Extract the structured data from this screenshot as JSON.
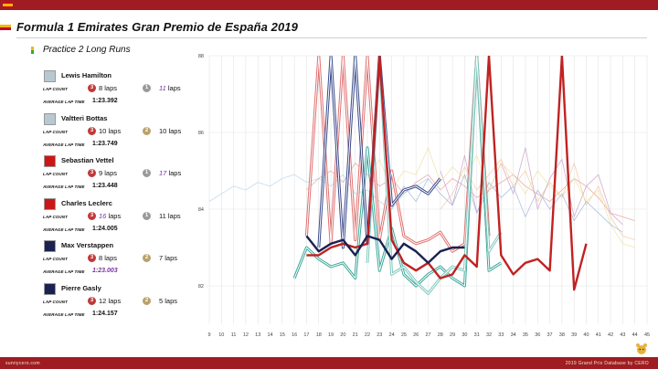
{
  "header": {
    "title": "Formula 1 Emirates Gran Premio de España 2019",
    "subtitle": "Practice 2 Long Runs"
  },
  "labels": {
    "lap_count": "LAP COUNT",
    "avg_lap_time": "AVERAGE LAP TIME"
  },
  "drivers": [
    {
      "name": "Lewis Hamilton",
      "color": "#b8c8d0",
      "stint1_compound": "3",
      "stint1_laps": "8",
      "stint2_compound": "1",
      "stint2_laps": "11",
      "stint2_highlight": true,
      "avg": "1:23.392",
      "avg_highlight": false
    },
    {
      "name": "Valtteri Bottas",
      "color": "#b8c8d0",
      "stint1_compound": "3",
      "stint1_laps": "10",
      "stint2_compound": "2",
      "stint2_laps": "10",
      "stint2_highlight": false,
      "avg": "1:23.749",
      "avg_highlight": false
    },
    {
      "name": "Sebastian Vettel",
      "color": "#cc1616",
      "stint1_compound": "3",
      "stint1_laps": "9",
      "stint2_compound": "1",
      "stint2_laps": "17",
      "stint2_highlight": true,
      "avg": "1:23.448",
      "avg_highlight": false
    },
    {
      "name": "Charles Leclerc",
      "color": "#cc1616",
      "stint1_compound": "3",
      "stint1_laps": "16",
      "stint1_highlight": true,
      "stint2_compound": "1",
      "stint2_laps": "11",
      "stint2_highlight": false,
      "avg": "1:24.005",
      "avg_highlight": false
    },
    {
      "name": "Max Verstappen",
      "color": "#1b2251",
      "stint1_compound": "3",
      "stint1_laps": "8",
      "stint2_compound": "2",
      "stint2_laps": "7",
      "stint2_highlight": false,
      "avg": "1:23.003",
      "avg_highlight": true
    },
    {
      "name": "Pierre Gasly",
      "color": "#1b2251",
      "stint1_compound": "3",
      "stint1_laps": "12",
      "stint2_compound": "2",
      "stint2_laps": "5",
      "stint2_highlight": false,
      "avg": "1:24.157",
      "avg_highlight": false
    }
  ],
  "compound_colors": {
    "1": "#9a9a9a",
    "2": "#b9a26a",
    "3": "#c0393b"
  },
  "laps_word": "laps",
  "chart_data": {
    "type": "line",
    "xlim": [
      9,
      45
    ],
    "ylim": [
      81,
      88
    ],
    "x_ticks": [
      9,
      10,
      11,
      12,
      13,
      14,
      15,
      16,
      17,
      18,
      19,
      20,
      21,
      22,
      23,
      24,
      25,
      26,
      27,
      28,
      29,
      30,
      31,
      32,
      33,
      34,
      35,
      36,
      37,
      38,
      39,
      40,
      41,
      42,
      43,
      44,
      45
    ],
    "y_ticks": [
      82,
      84,
      86,
      88
    ],
    "grid": true,
    "series": [
      {
        "style": "thick",
        "color": "#c02222",
        "x": [
          17,
          18,
          19,
          20,
          21,
          22,
          23,
          24,
          25,
          26,
          27,
          28,
          29,
          30,
          31,
          32,
          33,
          34,
          35,
          36,
          37,
          38,
          39,
          40
        ],
        "y": [
          82.8,
          82.8,
          83.0,
          83.1,
          83.0,
          83.1,
          88,
          83.2,
          82.6,
          82.4,
          82.6,
          82.2,
          82.3,
          82.8,
          82.5,
          88,
          82.8,
          82.3,
          82.6,
          82.7,
          82.4,
          88,
          81.9,
          83.1
        ]
      },
      {
        "style": "double",
        "color": "#e07070",
        "x": [
          17,
          18,
          19,
          20,
          21,
          22,
          23,
          24,
          25,
          26,
          27,
          28,
          29,
          30,
          31,
          32
        ],
        "y": [
          83.3,
          88,
          83.1,
          88,
          83.2,
          88,
          83.2,
          85,
          83.3,
          83.1,
          83.2,
          83.4,
          82.9,
          83.1,
          88,
          83.3
        ]
      },
      {
        "style": "double",
        "color": "#3aa89a",
        "x": [
          16,
          17,
          18,
          19,
          20,
          21,
          22,
          23,
          24,
          25,
          26,
          27,
          28,
          29,
          30,
          31,
          32,
          33
        ],
        "y": [
          82.2,
          83.0,
          82.7,
          82.5,
          82.6,
          82.2,
          85.6,
          82.4,
          83.5,
          82.3,
          82.0,
          82.3,
          82.5,
          82.2,
          82.0,
          88,
          82.4,
          82.6
        ]
      },
      {
        "style": "double",
        "color": "#7fc7bd",
        "x": [
          22,
          23,
          24,
          25,
          26,
          27,
          28,
          29,
          30,
          31,
          32,
          33
        ],
        "y": [
          82.6,
          88,
          82.3,
          82.5,
          82.1,
          81.8,
          82.2,
          82.5,
          82.4,
          88,
          82.9,
          83.4
        ]
      },
      {
        "style": "thick",
        "color": "#1b2251",
        "x": [
          17,
          18,
          19,
          20,
          21,
          22,
          23,
          24,
          25,
          26,
          27,
          28,
          29,
          30
        ],
        "y": [
          83.3,
          82.9,
          83.1,
          83.2,
          82.8,
          83.3,
          83.2,
          82.7,
          83.1,
          82.9,
          82.6,
          82.9,
          83.0,
          83.0
        ]
      },
      {
        "style": "double",
        "color": "#3a4a8a",
        "x": [
          18,
          19,
          20,
          21,
          22,
          23,
          24,
          25,
          26,
          27,
          28
        ],
        "y": [
          83.0,
          88,
          83.0,
          88,
          83.1,
          88,
          84.1,
          84.5,
          84.6,
          84.4,
          84.8
        ]
      },
      {
        "style": "thin",
        "color": "#e8a0a0",
        "x": [
          17,
          18,
          19,
          20,
          21,
          22,
          23,
          24,
          25,
          26,
          27,
          28,
          29,
          30,
          31,
          32,
          33,
          34,
          35,
          36,
          37,
          38,
          39,
          40,
          41,
          42,
          43,
          44
        ],
        "y": [
          84.5,
          84.8,
          85.0,
          84.7,
          85.2,
          84.9,
          84.6,
          84.8,
          84.4,
          84.7,
          84.9,
          84.5,
          84.8,
          84.6,
          84.3,
          84.5,
          84.7,
          84.9,
          84.6,
          84.4,
          84.2,
          84.5,
          84.8,
          84.6,
          84.3,
          83.9,
          83.8,
          83.7
        ]
      },
      {
        "style": "thin",
        "color": "#f2c9a0",
        "x": [
          28,
          29,
          30,
          31,
          32,
          33,
          34,
          35,
          36,
          37,
          38,
          39,
          40,
          41,
          42,
          43,
          44
        ],
        "y": [
          84.0,
          84.4,
          85.1,
          84.5,
          84.9,
          85.3,
          84.6,
          85.0,
          84.2,
          84.7,
          84.3,
          85.2,
          84.1,
          84.6,
          83.8,
          83.3,
          83.2
        ]
      },
      {
        "style": "thin",
        "color": "#c8a0c8",
        "x": [
          28,
          29,
          30,
          31,
          32,
          33,
          34,
          35,
          36,
          37,
          38,
          39,
          40,
          41,
          42,
          43
        ],
        "y": [
          85.0,
          84.1,
          85.4,
          83.9,
          84.5,
          85.2,
          84.4,
          85.6,
          84.0,
          84.8,
          85.3,
          83.8,
          84.6,
          84.9,
          83.9,
          83.6
        ]
      },
      {
        "style": "thin",
        "color": "#f0e0a0",
        "x": [
          22,
          23,
          24,
          25,
          26,
          27,
          28,
          29,
          30,
          31,
          32,
          33,
          34,
          35,
          36,
          37,
          38,
          39,
          40,
          41,
          42,
          43,
          44
        ],
        "y": [
          84.8,
          85.3,
          84.5,
          85.0,
          84.9,
          85.6,
          84.7,
          85.1,
          84.8,
          85.4,
          84.5,
          85.2,
          84.9,
          84.4,
          85.0,
          84.6,
          84.3,
          84.8,
          84.2,
          84.5,
          83.6,
          83.1,
          83.0
        ]
      },
      {
        "style": "thin",
        "color": "#b8d6e8",
        "x": [
          9,
          10,
          11,
          12,
          13,
          14,
          15,
          16,
          17,
          18,
          19,
          20,
          21,
          22,
          23,
          24,
          25,
          26,
          27
        ],
        "y": [
          84.2,
          84.4,
          84.6,
          84.5,
          84.7,
          84.6,
          84.8,
          84.9,
          84.7,
          84.8,
          84.6,
          84.9,
          84.4,
          84.5,
          84.2,
          84.0,
          84.4,
          84.6,
          84.8
        ]
      },
      {
        "style": "thin",
        "color": "#9fb6de",
        "x": [
          24,
          25,
          26,
          27,
          28,
          29,
          30,
          31,
          32,
          33,
          34,
          35,
          36,
          37,
          38,
          39,
          40,
          41,
          42,
          43
        ],
        "y": [
          84.0,
          84.6,
          84.2,
          84.8,
          84.4,
          84.1,
          84.9,
          83.9,
          84.7,
          84.3,
          84.6,
          83.8,
          84.5,
          84.0,
          84.4,
          83.7,
          84.2,
          83.9,
          83.6,
          83.4
        ]
      }
    ]
  }
}
